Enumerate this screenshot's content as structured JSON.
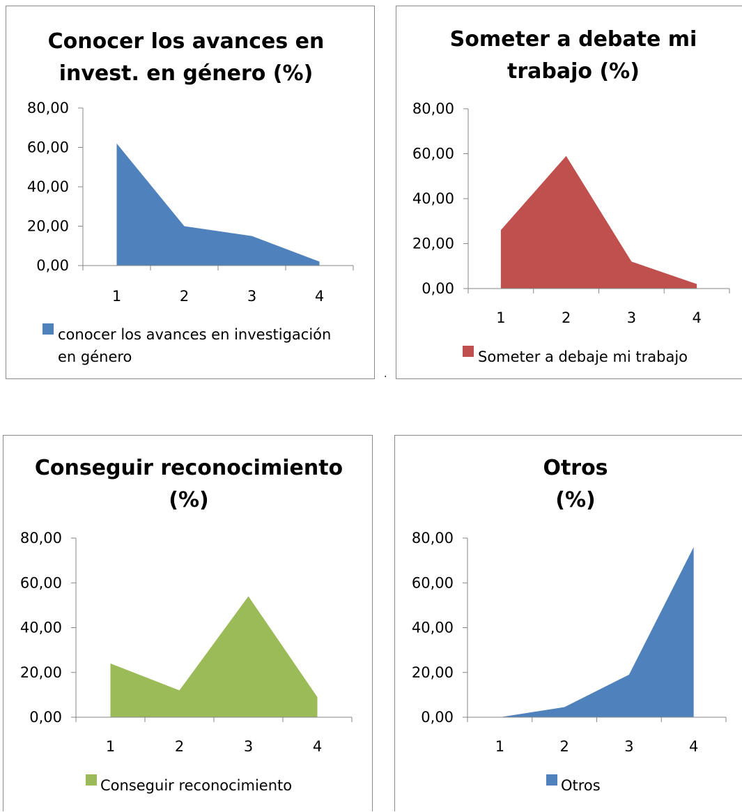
{
  "chart_data": [
    {
      "type": "area",
      "title_lines": [
        "Conocer los avances en",
        "invest. en género (%)"
      ],
      "categories": [
        "1",
        "2",
        "3",
        "4"
      ],
      "series": [
        {
          "name": "conocer los avances en investigación en género",
          "values": [
            62,
            20,
            15,
            2
          ]
        }
      ],
      "legend_lines": [
        "conocer los avances en investigación",
        "en género"
      ],
      "ylim": [
        0,
        80
      ],
      "yticks": [
        "0,00",
        "20,00",
        "40,00",
        "60,00",
        "80,00"
      ],
      "color": "#4f81bd",
      "legend": "bottom",
      "grid": false
    },
    {
      "type": "area",
      "title_lines": [
        "Someter a debate mi",
        "trabajo (%)"
      ],
      "categories": [
        "1",
        "2",
        "3",
        "4"
      ],
      "series": [
        {
          "name": "Someter a debaje mi trabajo",
          "values": [
            26,
            59,
            12,
            2
          ]
        }
      ],
      "legend_lines": [
        "Someter a debaje mi trabajo"
      ],
      "ylim": [
        0,
        80
      ],
      "yticks": [
        "0,00",
        "20,00",
        "40,00",
        "60,00",
        "80,00"
      ],
      "color": "#c0504d",
      "legend": "bottom",
      "grid": false
    },
    {
      "type": "area",
      "title_lines": [
        "Conseguir reconocimiento",
        "(%)"
      ],
      "categories": [
        "1",
        "2",
        "3",
        "4"
      ],
      "series": [
        {
          "name": "Conseguir reconocimiento",
          "values": [
            24,
            12,
            54,
            9
          ]
        }
      ],
      "legend_lines": [
        "Conseguir reconocimiento"
      ],
      "ylim": [
        0,
        80
      ],
      "yticks": [
        "0,00",
        "20,00",
        "40,00",
        "60,00",
        "80,00"
      ],
      "color": "#9bbb59",
      "legend": "bottom",
      "grid": false
    },
    {
      "type": "area",
      "title_lines": [
        "Otros",
        "(%)"
      ],
      "categories": [
        "1",
        "2",
        "3",
        "4"
      ],
      "series": [
        {
          "name": "Otros",
          "values": [
            0,
            4.5,
            19,
            76
          ]
        }
      ],
      "legend_lines": [
        "Otros"
      ],
      "ylim": [
        0,
        80
      ],
      "yticks": [
        "0,00",
        "20,00",
        "40,00",
        "60,00",
        "80,00"
      ],
      "color": "#4f81bd",
      "legend": "bottom",
      "grid": false
    }
  ],
  "separator_mark": "."
}
